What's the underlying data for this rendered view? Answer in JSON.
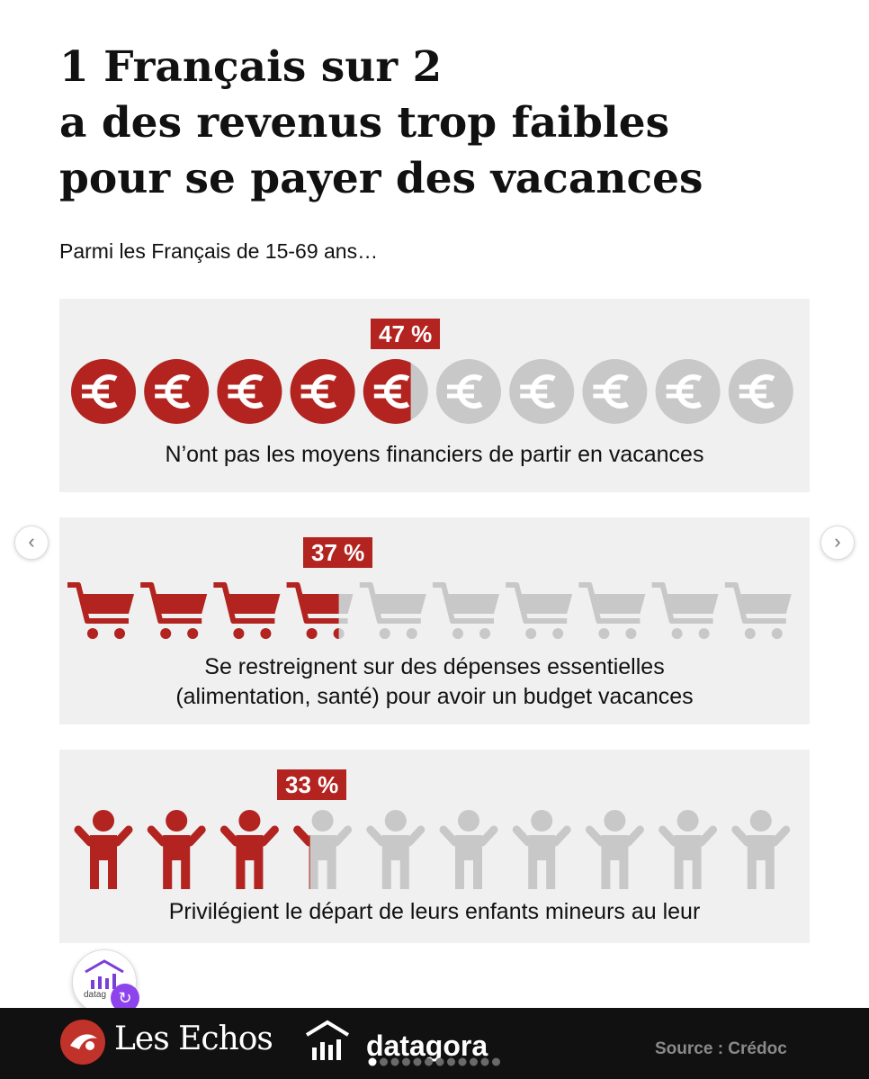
{
  "title_lines": [
    "1 Français sur 2",
    "a des revenus trop faibles",
    "pour se payer des vacances"
  ],
  "subtitle": "Parmi les Français de 15-69 ans…",
  "colors": {
    "accent": "#b3231f",
    "inactive": "#c8c8c8",
    "panel": "#f0f0f0",
    "footer": "#111111"
  },
  "chart_data": [
    {
      "type": "pictogram",
      "icon": "euro-coin-icon",
      "icons_total": 10,
      "value": 47,
      "label": "47 %",
      "caption_lines": [
        "N’ont pas les moyens financiers de partir en vacances"
      ]
    },
    {
      "type": "pictogram",
      "icon": "shopping-cart-icon",
      "icons_total": 10,
      "value": 37,
      "label": "37 %",
      "caption_lines": [
        "Se restreignent sur des dépenses essentielles",
        "(alimentation, santé) pour avoir un budget vacances"
      ]
    },
    {
      "type": "pictogram",
      "icon": "child-person-icon",
      "icons_total": 10,
      "value": 33,
      "label": "33 %",
      "caption_lines": [
        "Privilégient le départ de leurs enfants mineurs au leur"
      ]
    }
  ],
  "nav": {
    "prev_icon": "chevron-left-icon",
    "next_icon": "chevron-right-icon",
    "prev": "‹",
    "next": "›"
  },
  "avatar": {
    "icon": "datagora-avatar-icon",
    "text": "datag",
    "badge_icon": "repost-icon",
    "badge": "↻"
  },
  "footer": {
    "logo1": "Les Echos",
    "logo1_icon": "les-echos-logo-icon",
    "logo2": "datagora",
    "logo2_icon": "datagora-building-icon",
    "source": "Source : Crédoc"
  },
  "carousel": {
    "count": 12,
    "active_index": 0
  }
}
